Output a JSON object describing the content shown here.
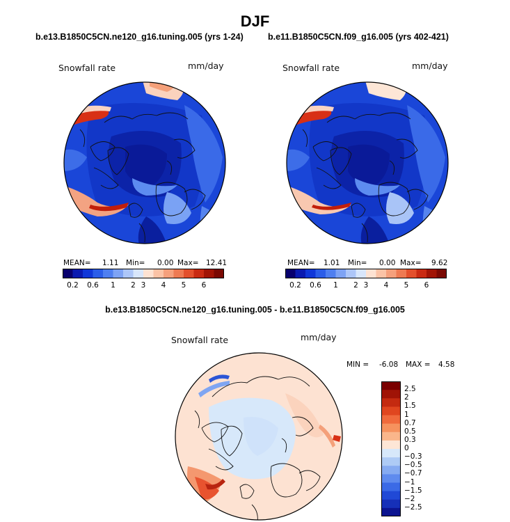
{
  "figure": {
    "title": "DJF"
  },
  "chart_data": [
    {
      "type": "heatmap",
      "projection": "north polar stereographic",
      "title": "b.e13.B1850C5CN.ne120_g16.tuning.005 (yrs 1-24)",
      "variable_label": "Snowfall rate",
      "units_label": "mm/day",
      "stats": {
        "mean_label": "MEAN=",
        "mean": "1.11",
        "min_label": "Min=",
        "min": "0.00",
        "max_label": "Max=",
        "max": "12.41"
      },
      "colorbar": {
        "orientation": "horizontal",
        "levels": [
          "0.2",
          "0.6",
          "1",
          "2",
          "3",
          "4",
          "5",
          "6"
        ],
        "colors": [
          "#08006e",
          "#0a1ab0",
          "#1037d8",
          "#2b5de8",
          "#4f7ff0",
          "#7ea3f4",
          "#adc6f8",
          "#d8e6fb",
          "#fde2d2",
          "#fbc3a6",
          "#f5a07c",
          "#ee7a52",
          "#e3502c",
          "#c92a12",
          "#a11405",
          "#7a0903"
        ]
      }
    },
    {
      "type": "heatmap",
      "projection": "north polar stereographic",
      "title": "b.e11.B1850C5CN.f09_g16.005 (yrs 402-421)",
      "variable_label": "Snowfall rate",
      "units_label": "mm/day",
      "stats": {
        "mean_label": "MEAN=",
        "mean": "1.01",
        "min_label": "Min=",
        "min": "0.00",
        "max_label": "Max=",
        "max": "9.62"
      },
      "colorbar": {
        "orientation": "horizontal",
        "levels": [
          "0.2",
          "0.6",
          "1",
          "2",
          "3",
          "4",
          "5",
          "6"
        ],
        "colors": [
          "#08006e",
          "#0a1ab0",
          "#1037d8",
          "#2b5de8",
          "#4f7ff0",
          "#7ea3f4",
          "#adc6f8",
          "#d8e6fb",
          "#fde2d2",
          "#fbc3a6",
          "#f5a07c",
          "#ee7a52",
          "#e3502c",
          "#c92a12",
          "#a11405",
          "#7a0903"
        ]
      }
    },
    {
      "type": "heatmap",
      "projection": "north polar stereographic",
      "title": "b.e13.B1850C5CN.ne120_g16.tuning.005 - b.e11.B1850C5CN.f09_g16.005",
      "variable_label": "Snowfall rate",
      "units_label": "mm/day",
      "stats": {
        "min_label": "MIN =",
        "min": "-6.08",
        "max_label": "MAX =",
        "max": "4.58"
      },
      "colorbar": {
        "orientation": "vertical",
        "levels": [
          "2.5",
          "2",
          "1.5",
          "1",
          "0.7",
          "0.5",
          "0.3",
          "0",
          "−0.3",
          "−0.5",
          "−0.7",
          "−1",
          "−1.5",
          "−2",
          "−2.5"
        ],
        "colors": [
          "#7a0000",
          "#a01306",
          "#c42a10",
          "#e0461f",
          "#f06a3c",
          "#f6925e",
          "#fab68b",
          "#fde6d6",
          "#d7e8fa",
          "#aecbf5",
          "#86abf1",
          "#5f8bee",
          "#3b6ae6",
          "#2049d6",
          "#1630b8",
          "#0c1490"
        ]
      }
    }
  ]
}
